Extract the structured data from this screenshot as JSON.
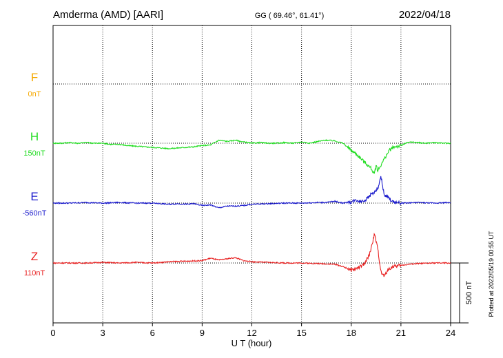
{
  "header": {
    "station": "Amderma (AMD)  [AARI]",
    "coords": "GG ( 69.46°,  61.41°)",
    "date": "2022/04/18"
  },
  "footer": {
    "plotted": "Plotted at 2022/05/19 00:55 UT",
    "scale_label": "500 nT"
  },
  "chart_data": {
    "type": "line",
    "title": "Amderma (AMD)  [AARI]",
    "xlabel": "U T (hour)",
    "ylabel": "",
    "xlim": [
      0,
      24
    ],
    "xticks": [
      0,
      3,
      6,
      9,
      12,
      15,
      18,
      21,
      24
    ],
    "xtick_labels": [
      "0",
      "3",
      "6",
      "9",
      "12",
      "15",
      "18",
      "21",
      "24"
    ],
    "grid": true,
    "scale_bar_nT": 500,
    "series": [
      {
        "name": "F",
        "baseline": "0nT",
        "color": "#f5a800",
        "x": [],
        "y": []
      },
      {
        "name": "H",
        "baseline": "150nT",
        "color": "#22dd22",
        "x": [
          0,
          0.5,
          1,
          1.5,
          2,
          2.5,
          3,
          3.5,
          4,
          4.5,
          5,
          5.5,
          6,
          6.5,
          7,
          7.5,
          8,
          8.5,
          9,
          9.5,
          10,
          10.5,
          11,
          11.5,
          12,
          12.5,
          13,
          13.5,
          14,
          14.5,
          15,
          15.5,
          16,
          16.5,
          17,
          17.5,
          18,
          18.3,
          18.6,
          18.9,
          19.2,
          19.4,
          19.5,
          19.6,
          19.8,
          20,
          20.3,
          20.6,
          21,
          21.3,
          21.6,
          22,
          22.5,
          23,
          23.5,
          24
        ],
        "y": [
          0,
          0,
          5,
          0,
          5,
          0,
          0,
          -10,
          -10,
          -20,
          -25,
          -30,
          -35,
          -40,
          -45,
          -40,
          -35,
          -30,
          -20,
          -15,
          25,
          15,
          25,
          10,
          0,
          5,
          0,
          0,
          5,
          0,
          10,
          0,
          15,
          25,
          20,
          0,
          -60,
          -90,
          -130,
          -170,
          -210,
          -260,
          -180,
          -230,
          -180,
          -130,
          -60,
          -30,
          -20,
          0,
          10,
          5,
          0,
          5,
          0,
          0
        ]
      },
      {
        "name": "E",
        "baseline": "-560nT",
        "color": "#1a1acc",
        "x": [
          0,
          1,
          2,
          3,
          4,
          5,
          6,
          6.5,
          7,
          7.5,
          8,
          8.5,
          9,
          9.5,
          10,
          10.5,
          11,
          11.5,
          12,
          13,
          14,
          15,
          16,
          16.5,
          17,
          17.5,
          18,
          18.3,
          18.6,
          18.9,
          19.2,
          19.4,
          19.6,
          19.8,
          20,
          20.2,
          20.5,
          21,
          22,
          23,
          24
        ],
        "y": [
          0,
          0,
          5,
          0,
          5,
          0,
          0,
          -5,
          -10,
          -5,
          -10,
          -5,
          -20,
          -15,
          -40,
          -25,
          -25,
          -20,
          -10,
          -5,
          0,
          0,
          5,
          5,
          15,
          0,
          10,
          25,
          15,
          30,
          75,
          90,
          120,
          220,
          60,
          50,
          10,
          0,
          5,
          0,
          5
        ]
      },
      {
        "name": "Z",
        "baseline": "110nT",
        "color": "#e82020",
        "x": [
          0,
          1,
          2,
          3,
          4,
          5,
          6,
          7,
          8,
          9,
          9.5,
          10,
          10.5,
          11,
          11.5,
          12,
          13,
          14,
          15,
          16,
          17,
          17.5,
          18,
          18.4,
          18.8,
          19.1,
          19.4,
          19.6,
          19.8,
          20,
          20.2,
          20.5,
          21,
          21.5,
          22,
          23,
          24
        ],
        "y": [
          0,
          0,
          0,
          5,
          0,
          5,
          0,
          10,
          15,
          20,
          40,
          25,
          35,
          45,
          20,
          10,
          5,
          0,
          0,
          -5,
          -10,
          -30,
          -60,
          -40,
          -10,
          70,
          240,
          120,
          -80,
          -110,
          -60,
          -30,
          -20,
          -10,
          -5,
          0,
          0
        ]
      }
    ]
  }
}
